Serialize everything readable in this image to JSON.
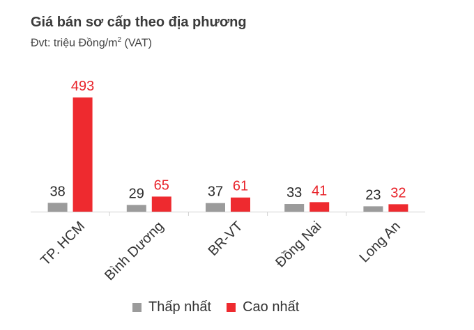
{
  "title": "Giá bán sơ cấp theo địa phương",
  "subtitle_prefix": "Đvt: triệu Đồng/m",
  "subtitle_sup": "2",
  "subtitle_suffix": " (VAT)",
  "colors": {
    "low": "#9b9b9b",
    "high": "#ee2a2f",
    "low_label": "#2a2a2a",
    "high_label": "#e8232a",
    "axis": "#d0d0d0"
  },
  "chart_data": {
    "type": "bar",
    "categories": [
      "TP. HCM",
      "Bình Dương",
      "BR-VT",
      "Đồng Nai",
      "Long An"
    ],
    "series": [
      {
        "name": "Thấp nhất",
        "values": [
          38,
          29,
          37,
          33,
          23
        ]
      },
      {
        "name": "Cao nhất",
        "values": [
          493,
          65,
          61,
          41,
          32
        ]
      }
    ],
    "ylim": [
      0,
      493
    ],
    "legend": "bottom"
  }
}
